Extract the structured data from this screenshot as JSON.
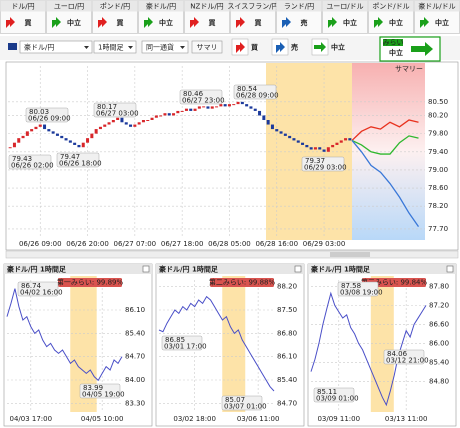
{
  "tabs": [
    {
      "label": "ドル/円",
      "signal": "買",
      "color": "#e02020"
    },
    {
      "label": "ユーロ/円",
      "signal": "中立",
      "color": "#1aa01a"
    },
    {
      "label": "ポンド/円",
      "signal": "買",
      "color": "#e02020"
    },
    {
      "label": "豪ドル/円",
      "signal": "中立",
      "color": "#1aa01a"
    },
    {
      "label": "NZドル/円",
      "signal": "買",
      "color": "#e02020"
    },
    {
      "label": "スイスフラン/円",
      "signal": "買",
      "color": "#e02020"
    },
    {
      "label": "ランド/円",
      "signal": "売",
      "color": "#1a5fb4"
    },
    {
      "label": "ユーロ/ドル",
      "signal": "中立",
      "color": "#1aa01a"
    },
    {
      "label": "ポンド/ドル",
      "signal": "中立",
      "color": "#1aa01a"
    },
    {
      "label": "豪ドル/ドル",
      "signal": "中立",
      "color": "#1aa01a"
    }
  ],
  "toolbar": {
    "pair": "豪ドル/円",
    "timeframe": "1時間足",
    "mode": "同一通貨",
    "summary": "サマリ",
    "legend": [
      {
        "label": "買",
        "color": "#e02020"
      },
      {
        "label": "売",
        "color": "#1a5fb4"
      },
      {
        "label": "中立",
        "color": "#1aa01a"
      }
    ],
    "badge": {
      "title": "みらい",
      "signal": "中立",
      "color": "#1aa01a"
    }
  },
  "main_chart": {
    "type": "candlestick",
    "ylim": [
      77.5,
      81.29
    ],
    "yticks": [
      {
        "value": 80.5,
        "label": "80.50"
      },
      {
        "value": 80.2,
        "label": "80.20"
      },
      {
        "value": 79.8,
        "label": "79.80"
      },
      {
        "value": 79.4,
        "label": "79.40"
      },
      {
        "value": 79,
        "label": "79.00"
      },
      {
        "value": 78.6,
        "label": "78.60"
      },
      {
        "value": 78.2,
        "label": "78.20"
      },
      {
        "value": 77.7,
        "label": "77.70"
      }
    ],
    "categories": [
      null,
      null,
      null,
      null,
      null,
      null,
      null,
      "06/26 09:00",
      null,
      null,
      null,
      null,
      null,
      null,
      null,
      null,
      null,
      null,
      "06/26 20:00",
      null,
      null,
      null,
      null,
      null,
      null,
      null,
      null,
      null,
      null,
      "06/27 07:00",
      null,
      null,
      null,
      null,
      null,
      null,
      null,
      null,
      null,
      null,
      "06/27 18:00",
      null,
      null,
      null,
      null,
      null,
      null,
      null,
      null,
      null,
      null,
      "06/28 05:00",
      null,
      null,
      null,
      null,
      null,
      null,
      null,
      null,
      null,
      null,
      "06/28 16:00",
      null,
      null,
      null,
      null,
      null,
      null,
      null,
      null,
      null,
      null,
      "06/29 03:00",
      null,
      null,
      null,
      null,
      null,
      null
    ],
    "close": [
      79.5,
      79.6,
      79.7,
      79.75,
      79.85,
      79.9,
      79.95,
      80.0,
      79.9,
      79.85,
      79.8,
      79.75,
      79.7,
      79.65,
      79.6,
      79.55,
      79.5,
      79.6,
      79.7,
      79.8,
      79.9,
      79.95,
      80.0,
      80.05,
      80.1,
      80.15,
      80.05,
      80.0,
      79.95,
      80.0,
      80.05,
      80.1,
      80.1,
      80.15,
      80.2,
      80.2,
      80.25,
      80.2,
      80.25,
      80.3,
      80.3,
      80.35,
      80.3,
      80.35,
      80.4,
      80.4,
      80.35,
      80.4,
      80.4,
      80.45,
      80.4,
      80.45,
      80.45,
      80.5,
      80.45,
      80.4,
      80.35,
      80.3,
      80.2,
      80.1,
      80.0,
      79.9,
      79.85,
      79.8,
      79.75,
      79.7,
      79.65,
      79.6,
      79.55,
      79.5,
      79.45,
      79.5,
      79.45,
      79.4,
      79.5,
      79.55,
      79.6,
      79.65,
      79.7,
      79.65
    ],
    "up_color": "#d8262a",
    "down_color": "#1c3a9c",
    "summary_label": "サマリー",
    "annotations": [
      {
        "value": "80.03",
        "time": "06/26 09:00"
      },
      {
        "value": "79.43",
        "time": "06/26 02:00"
      },
      {
        "value": "79.47",
        "time": "06/26 18:00"
      },
      {
        "value": "80.17",
        "time": "06/27 03:00"
      },
      {
        "value": "80.46",
        "time": "06/27 23:00"
      },
      {
        "value": "80.54",
        "time": "06/28 09:00"
      },
      {
        "value": "79.37",
        "time": "06/29 03:00"
      }
    ],
    "forecast": [
      {
        "color": "#e8321e",
        "values": [
          79.65,
          79.85,
          79.95,
          79.9,
          80.05,
          79.95,
          80.1,
          80.05
        ]
      },
      {
        "color": "#2eb82e",
        "values": [
          79.65,
          79.55,
          79.4,
          79.35,
          79.35,
          79.6,
          79.75,
          79.7
        ]
      },
      {
        "color": "#3a78d8",
        "values": [
          79.65,
          79.4,
          79.1,
          78.95,
          78.7,
          78.4,
          78.05,
          77.75
        ]
      }
    ]
  },
  "mini_charts": [
    {
      "title": "豪ドル/円 1時間足",
      "badge": "第一みらい: 99.89%",
      "ylim": [
        83.1,
        87.0
      ],
      "color": "#4a4fc8",
      "yticks": [
        {
          "value": 86.1,
          "label": "86.10"
        },
        {
          "value": 85.4,
          "label": "85.40"
        },
        {
          "value": 84.7,
          "label": "84.70"
        },
        {
          "value": 84,
          "label": "84.00"
        },
        {
          "value": 83.3,
          "label": "83.30"
        }
      ],
      "values": [
        85.9,
        86.3,
        86.74,
        86.2,
        85.8,
        85.9,
        85.6,
        85.4,
        85.5,
        85.2,
        85.0,
        85.1,
        84.9,
        84.8,
        84.9,
        84.7,
        84.5,
        84.6,
        84.4,
        84.3,
        84.2,
        84.3,
        84.1,
        83.99,
        84.2,
        84.4,
        84.3,
        84.6,
        84.5,
        84.7
      ],
      "categories": [
        null,
        null,
        null,
        null,
        null,
        null,
        "04/03 17:00",
        null,
        null,
        null,
        null,
        null,
        null,
        null,
        null,
        null,
        null,
        null,
        null,
        null,
        null,
        null,
        null,
        null,
        "04/05 10:00",
        null,
        null,
        null,
        null,
        null
      ],
      "annotations": [
        {
          "value": "86.74",
          "time": "04/02 16:00"
        },
        {
          "value": "83.99",
          "time": "04/05 19:00"
        }
      ]
    },
    {
      "title": "豪ドル/円 1時間足",
      "badge": "第二みらい: 99.88%",
      "ylim": [
        84.5,
        88.4
      ],
      "color": "#4a4fc8",
      "yticks": [
        {
          "value": 88.2,
          "label": "88.20"
        },
        {
          "value": 87.5,
          "label": "87.50"
        },
        {
          "value": 86.8,
          "label": "86.80"
        },
        {
          "value": 86.1,
          "label": "86.10"
        },
        {
          "value": 85.4,
          "label": "85.40"
        },
        {
          "value": 84.7,
          "label": "84.70"
        }
      ],
      "values": [
        86.9,
        86.85,
        87.1,
        87.3,
        87.5,
        87.4,
        87.6,
        87.5,
        87.7,
        87.6,
        87.8,
        87.7,
        87.9,
        87.8,
        87.6,
        87.4,
        87.2,
        87.3,
        87.0,
        86.8,
        86.9,
        86.6,
        86.4,
        86.2,
        86.0,
        85.8,
        85.6,
        85.4,
        85.2,
        85.07
      ],
      "categories": [
        null,
        null,
        null,
        null,
        null,
        null,
        null,
        null,
        null,
        "03/02 18:00",
        null,
        null,
        null,
        null,
        null,
        null,
        null,
        null,
        null,
        null,
        null,
        null,
        null,
        null,
        null,
        "03/06 11:00",
        null,
        null,
        null,
        null
      ],
      "annotations": [
        {
          "value": "86.85",
          "time": "03/01 17:00"
        },
        {
          "value": "85.07",
          "time": "03/07 01:00"
        }
      ]
    },
    {
      "title": "豪ドル/円 1時間足",
      "badge": "第三みらい: 99.84%",
      "ylim": [
        83.9,
        88.0
      ],
      "color": "#4a4fc8",
      "yticks": [
        {
          "value": 87.8,
          "label": "87.80"
        },
        {
          "value": 87.2,
          "label": "87.20"
        },
        {
          "value": 86.6,
          "label": "86.60"
        },
        {
          "value": 86,
          "label": "86.00"
        },
        {
          "value": 85.4,
          "label": "85.40"
        },
        {
          "value": 84.8,
          "label": "84.80"
        }
      ],
      "values": [
        85.11,
        85.5,
        86.0,
        86.6,
        87.1,
        87.58,
        87.2,
        87.0,
        86.8,
        86.9,
        86.5,
        86.3,
        86.0,
        85.8,
        85.5,
        85.2,
        84.9,
        84.6,
        84.3,
        84.06,
        84.5,
        85.0,
        85.6,
        86.0,
        86.4,
        86.2,
        86.6,
        86.8,
        87.0,
        87.2
      ],
      "categories": [
        null,
        null,
        null,
        null,
        null,
        null,
        null,
        "03/09 11:00",
        null,
        null,
        null,
        null,
        null,
        null,
        null,
        null,
        null,
        null,
        null,
        null,
        null,
        null,
        null,
        null,
        "03/13 11:00",
        null,
        null,
        null,
        null,
        null
      ],
      "annotations": [
        {
          "value": "87.58",
          "time": "03/08 19:00"
        },
        {
          "value": "84.06",
          "time": "03/12 21:00"
        },
        {
          "value": "85.11",
          "time": "03/09 01:00"
        }
      ]
    }
  ]
}
